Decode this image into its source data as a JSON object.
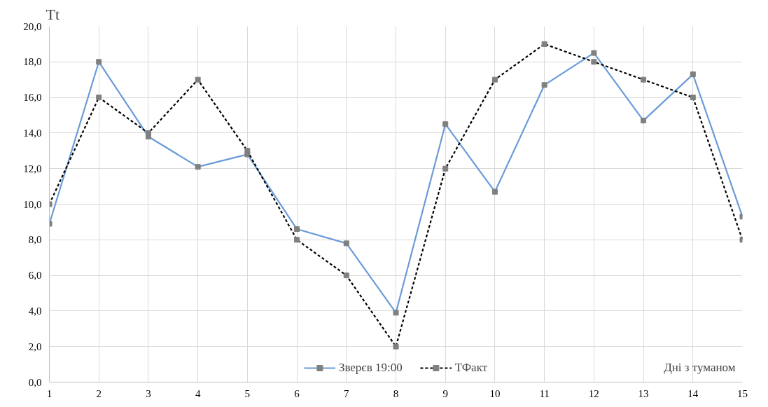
{
  "chart_data": {
    "type": "line",
    "ylabel": "Tt",
    "xlabel": "Дні з туманом",
    "x": [
      1,
      2,
      3,
      4,
      5,
      6,
      7,
      8,
      9,
      10,
      11,
      12,
      13,
      14,
      15
    ],
    "xlim": [
      1,
      15
    ],
    "xticks": [
      1,
      2,
      3,
      4,
      5,
      6,
      7,
      8,
      9,
      10,
      11,
      12,
      13,
      14,
      15
    ],
    "ylim": [
      0,
      20
    ],
    "yticks": [
      {
        "value": 0,
        "label": "0,0"
      },
      {
        "value": 2,
        "label": "2,0"
      },
      {
        "value": 4,
        "label": "4,0"
      },
      {
        "value": 6,
        "label": "6,0"
      },
      {
        "value": 8,
        "label": "8,0"
      },
      {
        "value": 10,
        "label": "10,0"
      },
      {
        "value": 12,
        "label": "12,0"
      },
      {
        "value": 14,
        "label": "14,0"
      },
      {
        "value": 16,
        "label": "16,0"
      },
      {
        "value": 18,
        "label": "18,0"
      },
      {
        "value": 20,
        "label": "20,0"
      }
    ],
    "grid": true,
    "legend": "bottom",
    "marker": "square",
    "series": [
      {
        "name": "Зверєв 19:00",
        "color": "#6a9bd8",
        "line_style": "solid",
        "values": [
          8.9,
          18.0,
          13.8,
          12.1,
          12.8,
          8.6,
          7.8,
          3.9,
          14.5,
          10.7,
          16.7,
          18.5,
          14.7,
          17.3,
          9.3
        ]
      },
      {
        "name": "ТФакт",
        "color": "#000000",
        "line_style": "dashed",
        "values": [
          10,
          16,
          14,
          17,
          13,
          8,
          6,
          2,
          12,
          17,
          19,
          18,
          17,
          16,
          8
        ]
      }
    ]
  }
}
